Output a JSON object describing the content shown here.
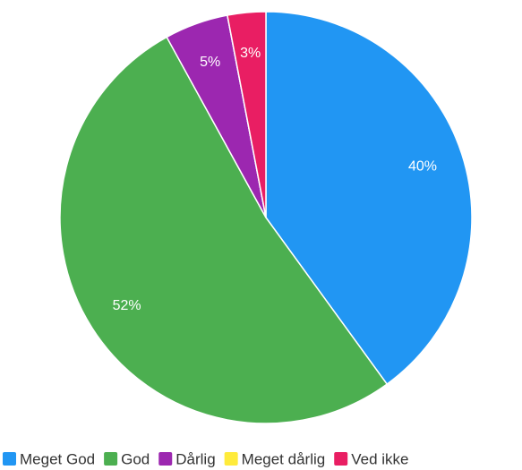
{
  "chart_data": {
    "type": "pie",
    "categories": [
      "Meget God",
      "God",
      "Dårlig",
      "Meget dårlig",
      "Ved ikke"
    ],
    "values": [
      40,
      52,
      5,
      0,
      3
    ],
    "value_labels": [
      "40%",
      "52%",
      "5%",
      null,
      "3%"
    ],
    "colors": [
      "#2196f3",
      "#4caf50",
      "#9c27b0",
      "#ffeb3b",
      "#e91e63"
    ],
    "legend": "bottom"
  }
}
